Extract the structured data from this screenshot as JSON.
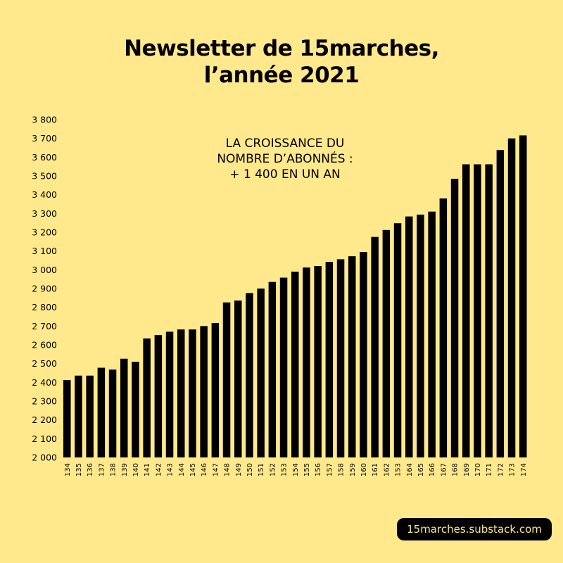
{
  "header": {
    "title_line1": "Newsletter de 15marches,",
    "title_line2": "l’année 2021"
  },
  "annotation": {
    "line1": "LA CROISSANCE DU",
    "line2": "NOMBRE D’ABONNÉS :",
    "line3": "+ 1 400 EN UN AN"
  },
  "footer": {
    "label": "15marches.substack.com"
  },
  "colors": {
    "background": "#ffe98c",
    "bar": "#000000"
  },
  "chart_data": {
    "type": "bar",
    "title": "Newsletter de 15marches, l’année 2021",
    "xlabel": "",
    "ylabel": "",
    "ylim": [
      2000,
      3800
    ],
    "yticks": [
      2000,
      2100,
      2200,
      2300,
      2400,
      2500,
      2600,
      2700,
      2800,
      2900,
      3000,
      3100,
      3200,
      3300,
      3400,
      3500,
      3600,
      3700,
      3800
    ],
    "ytick_labels": [
      "2 000",
      "2 100",
      "2 200",
      "2 300",
      "2 400",
      "2 500",
      "2 600",
      "2 700",
      "2 800",
      "2 900",
      "3 000",
      "3 100",
      "3 200",
      "3 300",
      "3 400",
      "3 500",
      "3 600",
      "3 700",
      "3 800"
    ],
    "categories": [
      "134",
      "135",
      "136",
      "137",
      "138",
      "139",
      "140",
      "141",
      "142",
      "143",
      "144",
      "145",
      "146",
      "147",
      "148",
      "149",
      "150",
      "151",
      "152",
      "153",
      "154",
      "155",
      "156",
      "157",
      "158",
      "159",
      "160",
      "161",
      "162",
      "153",
      "164",
      "165",
      "166",
      "167",
      "168",
      "169",
      "170",
      "171",
      "172",
      "173",
      "174"
    ],
    "values": [
      2412,
      2436,
      2436,
      2478,
      2468,
      2526,
      2510,
      2634,
      2652,
      2670,
      2682,
      2682,
      2700,
      2716,
      2826,
      2836,
      2876,
      2900,
      2935,
      2958,
      2990,
      3012,
      3020,
      3042,
      3056,
      3072,
      3095,
      3175,
      3212,
      3248,
      3284,
      3294,
      3310,
      3380,
      3485,
      3562,
      3562,
      3562,
      3638,
      3700,
      3716
    ],
    "grid": false,
    "legend": "none"
  }
}
